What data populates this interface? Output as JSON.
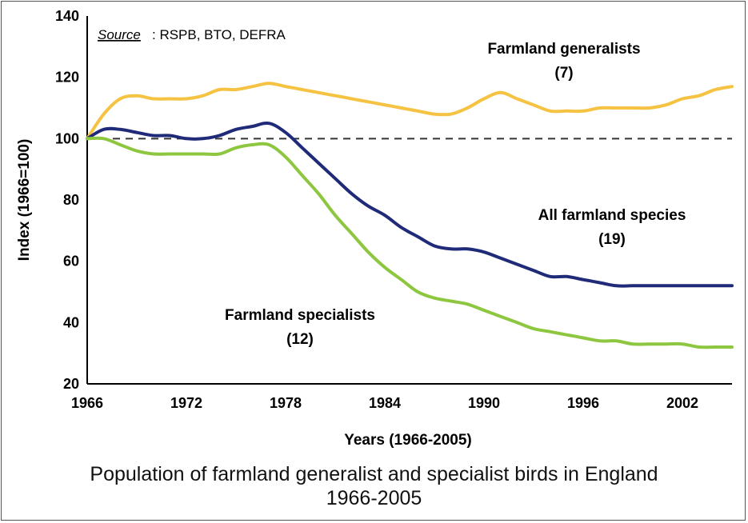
{
  "chart_data": {
    "type": "line",
    "title": "Population of farmland generalist and specialist birds in England",
    "subtitle": "1966-2005",
    "xlabel": "Years (1966-2005)",
    "ylabel": "Index (1966=100)",
    "xlim": [
      1966,
      2005
    ],
    "ylim": [
      20,
      140
    ],
    "xticks": [
      "1966",
      "1972",
      "1978",
      "1984",
      "1990",
      "1996",
      "2002"
    ],
    "yticks": [
      "140",
      "120",
      "100",
      "80",
      "60",
      "40",
      "20"
    ],
    "source_label": "Source",
    "source_text": ": RSPB, BTO, DEFRA",
    "reference_line": 100,
    "series": [
      {
        "name": "Farmland generalists",
        "count": "(7)",
        "color": "#F5C242",
        "x": [
          1966,
          1967,
          1968,
          1969,
          1970,
          1971,
          1972,
          1973,
          1974,
          1975,
          1976,
          1977,
          1978,
          1979,
          1980,
          1981,
          1982,
          1983,
          1984,
          1985,
          1986,
          1987,
          1988,
          1989,
          1990,
          1991,
          1992,
          1993,
          1994,
          1995,
          1996,
          1997,
          1998,
          1999,
          2000,
          2001,
          2002,
          2003,
          2004,
          2005
        ],
        "values": [
          100,
          108,
          113,
          114,
          113,
          113,
          113,
          114,
          116,
          116,
          117,
          118,
          117,
          116,
          115,
          114,
          113,
          112,
          111,
          110,
          109,
          108,
          108,
          110,
          113,
          115,
          113,
          111,
          109,
          109,
          109,
          110,
          110,
          110,
          110,
          111,
          113,
          114,
          116,
          117
        ]
      },
      {
        "name": "All farmland species",
        "count": "(19)",
        "color": "#1F2A78",
        "x": [
          1966,
          1967,
          1968,
          1969,
          1970,
          1971,
          1972,
          1973,
          1974,
          1975,
          1976,
          1977,
          1978,
          1979,
          1980,
          1981,
          1982,
          1983,
          1984,
          1985,
          1986,
          1987,
          1988,
          1989,
          1990,
          1991,
          1992,
          1993,
          1994,
          1995,
          1996,
          1997,
          1998,
          1999,
          2000,
          2001,
          2002,
          2003,
          2004,
          2005
        ],
        "values": [
          100,
          103,
          103,
          102,
          101,
          101,
          100,
          100,
          101,
          103,
          104,
          105,
          102,
          97,
          92,
          87,
          82,
          78,
          75,
          71,
          68,
          65,
          64,
          64,
          63,
          61,
          59,
          57,
          55,
          55,
          54,
          53,
          52,
          52,
          52,
          52,
          52,
          52,
          52,
          52
        ]
      },
      {
        "name": "Farmland specialists",
        "count": "(12)",
        "color": "#8DC63F",
        "x": [
          1966,
          1967,
          1968,
          1969,
          1970,
          1971,
          1972,
          1973,
          1974,
          1975,
          1976,
          1977,
          1978,
          1979,
          1980,
          1981,
          1982,
          1983,
          1984,
          1985,
          1986,
          1987,
          1988,
          1989,
          1990,
          1991,
          1992,
          1993,
          1994,
          1995,
          1996,
          1997,
          1998,
          1999,
          2000,
          2001,
          2002,
          2003,
          2004,
          2005
        ],
        "values": [
          100,
          100,
          98,
          96,
          95,
          95,
          95,
          95,
          95,
          97,
          98,
          98,
          94,
          88,
          82,
          75,
          69,
          63,
          58,
          54,
          50,
          48,
          47,
          46,
          44,
          42,
          40,
          38,
          37,
          36,
          35,
          34,
          34,
          33,
          33,
          33,
          33,
          32,
          32,
          32
        ]
      }
    ]
  },
  "caption": {
    "line1": "Population of farmland generalist and specialist birds in England",
    "line2": "1966-2005"
  }
}
